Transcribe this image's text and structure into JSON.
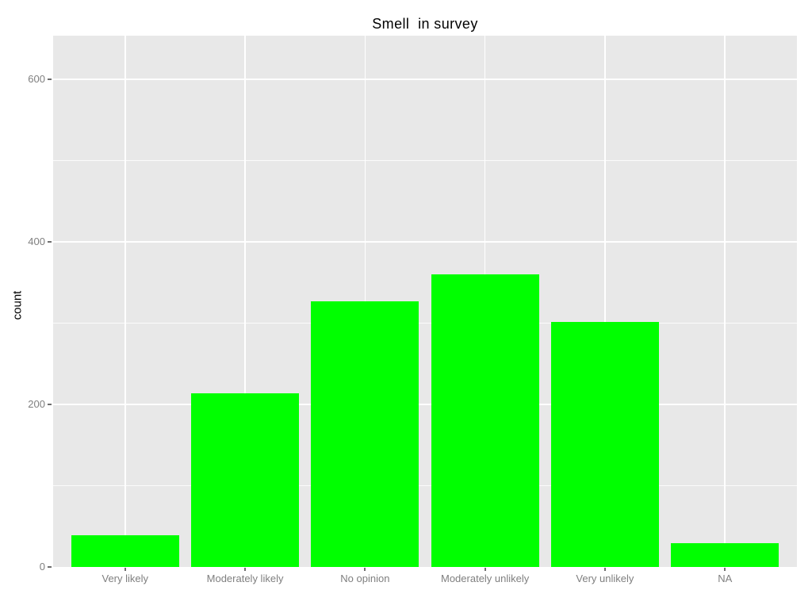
{
  "chart_data": {
    "type": "bar",
    "title": "Smell  in survey",
    "xlabel": "",
    "ylabel": "count",
    "categories": [
      "Very likely",
      "Moderately likely",
      "No opinion",
      "Moderately unlikely",
      "Very unlikely",
      "NA"
    ],
    "values": [
      39,
      214,
      327,
      360,
      302,
      29
    ],
    "yticks": [
      0,
      200,
      400,
      600
    ],
    "yticks_minor": [
      100,
      300,
      500
    ],
    "ylim": [
      0,
      654
    ],
    "x_domain": [
      0.4,
      6.6
    ],
    "bar_width_units": 0.9,
    "bar_color": "#00FF00",
    "panel_background": "#E8E8E8",
    "grid_color": "#FFFFFF",
    "axis_text_color": "#7F7F7F",
    "tick_mark_color": "#6E6E6E",
    "title_color": "#000000",
    "grid": "on",
    "legend": "none"
  }
}
